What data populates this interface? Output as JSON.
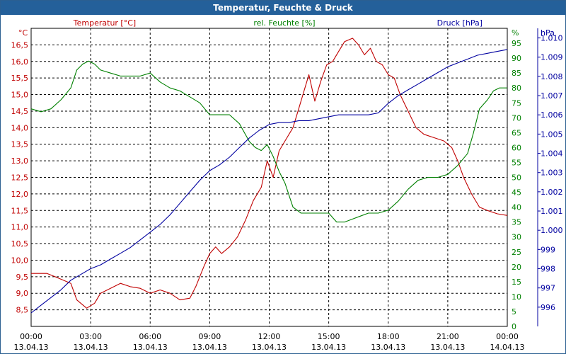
{
  "window_title": "Temperatur, Feuchte & Druck",
  "chart_data": {
    "type": "line",
    "title": "Temperatur, Feuchte & Druck",
    "x_ticks": [
      {
        "time": "00:00",
        "date": "13.04.13"
      },
      {
        "time": "03:00",
        "date": "13.04.13"
      },
      {
        "time": "06:00",
        "date": "13.04.13"
      },
      {
        "time": "09:00",
        "date": "13.04.13"
      },
      {
        "time": "12:00",
        "date": "13.04.13"
      },
      {
        "time": "15:00",
        "date": "13.04.13"
      },
      {
        "time": "18:00",
        "date": "13.04.13"
      },
      {
        "time": "21:00",
        "date": "13.04.13"
      },
      {
        "time": "00:00",
        "date": "14.04.13"
      }
    ],
    "xlim": [
      0,
      24
    ],
    "grid": true,
    "axes": {
      "temperature": {
        "label": "Temperatur [°C]",
        "unit": "°C",
        "ylim": [
          8.0,
          17.0
        ],
        "ticks": [
          "8,5",
          "9,0",
          "9,5",
          "10,0",
          "10,5",
          "11,0",
          "11,5",
          "12,0",
          "12,5",
          "13,0",
          "13,5",
          "14,0",
          "14,5",
          "15,0",
          "15,5",
          "16,0",
          "16,5"
        ],
        "color": "#c00000"
      },
      "humidity": {
        "label": "rel. Feuchte [%]",
        "unit": "%",
        "ylim": [
          0,
          100
        ],
        "ticks": [
          "0",
          "5",
          "10",
          "15",
          "20",
          "25",
          "30",
          "35",
          "40",
          "45",
          "50",
          "55",
          "60",
          "65",
          "70",
          "75",
          "80",
          "85",
          "90",
          "95"
        ],
        "color": "#008000"
      },
      "pressure": {
        "label": "Druck [hPa]",
        "unit": "hPa",
        "ylim": [
          995,
          1010.5
        ],
        "ticks": [
          "996",
          "997",
          "998",
          "999",
          "1.000",
          "1.001",
          "1.002",
          "1.003",
          "1.004",
          "1.005",
          "1.006",
          "1.007",
          "1.008",
          "1.009",
          "1.010"
        ],
        "color": "#0000a0"
      }
    },
    "series": [
      {
        "name": "Temperatur [°C]",
        "axis": "temperature",
        "color": "#c00000",
        "points": [
          [
            0,
            9.6
          ],
          [
            0.8,
            9.6
          ],
          [
            1.2,
            9.5
          ],
          [
            2.0,
            9.3
          ],
          [
            2.3,
            8.8
          ],
          [
            2.8,
            8.55
          ],
          [
            3.2,
            8.7
          ],
          [
            3.5,
            9.0
          ],
          [
            4.0,
            9.15
          ],
          [
            4.5,
            9.3
          ],
          [
            5.0,
            9.2
          ],
          [
            5.5,
            9.15
          ],
          [
            6.0,
            9.0
          ],
          [
            6.5,
            9.1
          ],
          [
            7.0,
            9.0
          ],
          [
            7.5,
            8.8
          ],
          [
            8.0,
            8.85
          ],
          [
            8.3,
            9.2
          ],
          [
            8.7,
            9.8
          ],
          [
            9.0,
            10.2
          ],
          [
            9.3,
            10.4
          ],
          [
            9.6,
            10.2
          ],
          [
            10.0,
            10.4
          ],
          [
            10.4,
            10.7
          ],
          [
            10.8,
            11.2
          ],
          [
            11.2,
            11.8
          ],
          [
            11.6,
            12.2
          ],
          [
            11.9,
            13.0
          ],
          [
            12.2,
            12.5
          ],
          [
            12.5,
            13.3
          ],
          [
            12.8,
            13.6
          ],
          [
            13.2,
            14.0
          ],
          [
            13.5,
            14.6
          ],
          [
            13.8,
            15.2
          ],
          [
            14.0,
            15.6
          ],
          [
            14.3,
            14.8
          ],
          [
            14.6,
            15.4
          ],
          [
            14.9,
            15.9
          ],
          [
            15.2,
            16.0
          ],
          [
            15.5,
            16.3
          ],
          [
            15.8,
            16.6
          ],
          [
            16.2,
            16.7
          ],
          [
            16.5,
            16.5
          ],
          [
            16.8,
            16.2
          ],
          [
            17.1,
            16.4
          ],
          [
            17.4,
            16.0
          ],
          [
            17.7,
            15.9
          ],
          [
            18.0,
            15.6
          ],
          [
            18.3,
            15.5
          ],
          [
            18.6,
            15.0
          ],
          [
            19.0,
            14.5
          ],
          [
            19.4,
            14.0
          ],
          [
            19.8,
            13.8
          ],
          [
            20.3,
            13.7
          ],
          [
            20.8,
            13.6
          ],
          [
            21.2,
            13.4
          ],
          [
            21.5,
            13.0
          ],
          [
            21.8,
            12.5
          ],
          [
            22.2,
            12.0
          ],
          [
            22.6,
            11.6
          ],
          [
            23.0,
            11.5
          ],
          [
            23.5,
            11.4
          ],
          [
            24.0,
            11.35
          ]
        ]
      },
      {
        "name": "rel. Feuchte [%]",
        "axis": "humidity",
        "color": "#008000",
        "points": [
          [
            0,
            73
          ],
          [
            0.5,
            72
          ],
          [
            1.0,
            73
          ],
          [
            1.5,
            76
          ],
          [
            2.0,
            80
          ],
          [
            2.3,
            86
          ],
          [
            2.6,
            88
          ],
          [
            2.9,
            89
          ],
          [
            3.2,
            88
          ],
          [
            3.5,
            86
          ],
          [
            4.0,
            85
          ],
          [
            4.5,
            84
          ],
          [
            5.0,
            84
          ],
          [
            5.5,
            84
          ],
          [
            6.0,
            85
          ],
          [
            6.5,
            82
          ],
          [
            7.0,
            80
          ],
          [
            7.5,
            79
          ],
          [
            8.0,
            77
          ],
          [
            8.5,
            75
          ],
          [
            9.0,
            71
          ],
          [
            9.5,
            71
          ],
          [
            10.0,
            71
          ],
          [
            10.5,
            68
          ],
          [
            11.0,
            62
          ],
          [
            11.3,
            60
          ],
          [
            11.6,
            59
          ],
          [
            11.9,
            61
          ],
          [
            12.2,
            57
          ],
          [
            12.5,
            52
          ],
          [
            12.8,
            48
          ],
          [
            13.2,
            40
          ],
          [
            13.6,
            38
          ],
          [
            14.0,
            38
          ],
          [
            14.5,
            38
          ],
          [
            15.0,
            38
          ],
          [
            15.4,
            35
          ],
          [
            15.8,
            35
          ],
          [
            16.2,
            36
          ],
          [
            16.6,
            37
          ],
          [
            17.0,
            38
          ],
          [
            17.5,
            38
          ],
          [
            18.0,
            39
          ],
          [
            18.5,
            42
          ],
          [
            19.0,
            46
          ],
          [
            19.5,
            49
          ],
          [
            20.0,
            50
          ],
          [
            20.5,
            50
          ],
          [
            21.0,
            51
          ],
          [
            21.5,
            54
          ],
          [
            22.0,
            58
          ],
          [
            22.3,
            65
          ],
          [
            22.6,
            73
          ],
          [
            23.0,
            76
          ],
          [
            23.3,
            79
          ],
          [
            23.6,
            80
          ],
          [
            24.0,
            80
          ]
        ]
      },
      {
        "name": "Druck [hPa]",
        "axis": "pressure",
        "color": "#0000a0",
        "points": [
          [
            0,
            995.7
          ],
          [
            0.5,
            996.1
          ],
          [
            1.0,
            996.5
          ],
          [
            1.5,
            996.9
          ],
          [
            2.0,
            997.4
          ],
          [
            2.5,
            997.7
          ],
          [
            3.0,
            998.0
          ],
          [
            3.5,
            998.2
          ],
          [
            4.0,
            998.5
          ],
          [
            4.5,
            998.8
          ],
          [
            5.0,
            999.1
          ],
          [
            5.5,
            999.5
          ],
          [
            6.0,
            999.9
          ],
          [
            6.5,
            1000.3
          ],
          [
            7.0,
            1000.8
          ],
          [
            7.5,
            1001.4
          ],
          [
            8.0,
            1002.0
          ],
          [
            8.5,
            1002.6
          ],
          [
            9.0,
            1003.1
          ],
          [
            9.5,
            1003.4
          ],
          [
            10.0,
            1003.8
          ],
          [
            10.5,
            1004.3
          ],
          [
            11.0,
            1004.8
          ],
          [
            11.5,
            1005.2
          ],
          [
            12.0,
            1005.5
          ],
          [
            12.5,
            1005.6
          ],
          [
            13.0,
            1005.6
          ],
          [
            13.5,
            1005.7
          ],
          [
            14.0,
            1005.7
          ],
          [
            14.5,
            1005.8
          ],
          [
            15.0,
            1005.9
          ],
          [
            15.5,
            1006.0
          ],
          [
            16.0,
            1006.0
          ],
          [
            16.5,
            1006.0
          ],
          [
            17.0,
            1006.0
          ],
          [
            17.5,
            1006.1
          ],
          [
            18.0,
            1006.6
          ],
          [
            18.5,
            1007.0
          ],
          [
            19.0,
            1007.3
          ],
          [
            19.5,
            1007.6
          ],
          [
            20.0,
            1007.9
          ],
          [
            20.5,
            1008.2
          ],
          [
            21.0,
            1008.5
          ],
          [
            21.5,
            1008.7
          ],
          [
            22.0,
            1008.9
          ],
          [
            22.5,
            1009.1
          ],
          [
            23.0,
            1009.2
          ],
          [
            23.5,
            1009.3
          ],
          [
            24.0,
            1009.4
          ]
        ]
      }
    ]
  }
}
